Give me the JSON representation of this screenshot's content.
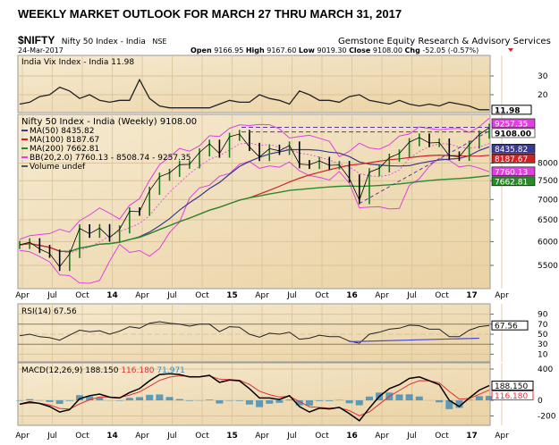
{
  "title": "WEEKLY MARKET OUTLOOK FOR MARCH 27 THRU MARCH 31, 2017",
  "header": {
    "symbol": "$NIFTY",
    "name": "Nifty 50 Index - India",
    "exchange": "NSE",
    "provider": "Gemstone Equity Research & Advisory Services",
    "date": "24-Mar-2017",
    "open_label": "Open",
    "open": "9166.95",
    "high_label": "High",
    "high": "9167.60",
    "low_label": "Low",
    "low": "9019.30",
    "close_label": "Close",
    "close": "9108.00",
    "chg_label": "Chg",
    "chg": "-52.05 (-0.57%)",
    "chg_icon": "triangle-down-icon"
  },
  "colors": {
    "panel": "#f1dfbc",
    "price": "#000000",
    "ma50": "#3a3a8c",
    "ma100": "#cc2222",
    "ma200": "#2a8a2a",
    "bb": "#e040e0",
    "macd_signal": "#e03030",
    "hist": "#3a8ab8"
  },
  "chart_data": [
    {
      "type": "line",
      "panel": "vix",
      "legend": "India Vix Index - India 11.98",
      "yticks": [
        20,
        30
      ],
      "last_tag": "11.98",
      "values": [
        15,
        16,
        19,
        20,
        24,
        22,
        18,
        20,
        17,
        16,
        17,
        17,
        28,
        18,
        14,
        13,
        13,
        13,
        13,
        13,
        15,
        17,
        16,
        16,
        20,
        18,
        17,
        15,
        22,
        20,
        17,
        17,
        16,
        19,
        20,
        17,
        16,
        15,
        17,
        15,
        14,
        15,
        14,
        16,
        15,
        14,
        12,
        11.98
      ]
    },
    {
      "type": "line",
      "panel": "price",
      "scale": "log",
      "legend_title": "Nifty 50 Index - India (Weekly) 9108.00",
      "legend": [
        {
          "name": "MA(50) 8435.82",
          "color": "#3a3a8c"
        },
        {
          "name": "MA(100) 8187.67",
          "color": "#cc2222"
        },
        {
          "name": "MA(200) 7662.81",
          "color": "#2a8a2a"
        },
        {
          "name": "BB(20,2.0) 7760.13 - 8508.74 - 9257.35",
          "color": "#e040e0"
        },
        {
          "name": "Volume undef",
          "color": "#555555"
        }
      ],
      "yticks": [
        5500,
        6000,
        6500,
        7000,
        7500,
        8000
      ],
      "tags": [
        {
          "label": "9257.35",
          "value": 9257.35,
          "color": "#e040e0"
        },
        {
          "label": "9108.00",
          "value": 9108,
          "color": "#000000"
        },
        {
          "label": "8435.82",
          "value": 8435.82,
          "color": "#3a3a8c"
        },
        {
          "label": "8187.67",
          "value": 8187.67,
          "color": "#cc2222"
        },
        {
          "label": "7760.13",
          "value": 7760.13,
          "color": "#e040e0"
        },
        {
          "label": "7662.81",
          "value": 7662.81,
          "color": "#2a8a2a"
        }
      ],
      "resistance": [
        8970,
        9120
      ],
      "x_labels": [
        "Apr",
        "Jul",
        "Oct",
        "14",
        "Apr",
        "Jul",
        "Oct",
        "15",
        "Apr",
        "Jul",
        "Oct",
        "16",
        "Apr",
        "Jul",
        "Oct",
        "17",
        "Apr"
      ],
      "close": [
        5930,
        5986,
        5842,
        5742,
        5471,
        5735,
        6299,
        6176,
        6304,
        6090,
        6277,
        6704,
        6696,
        7230,
        7611,
        7721,
        7954,
        7965,
        8322,
        8588,
        8283,
        8809,
        8902,
        8491,
        8182,
        8434,
        8368,
        8533,
        7971,
        7949,
        8066,
        7935,
        7946,
        7563,
        6987,
        7738,
        7850,
        8160,
        8288,
        8639,
        8786,
        8611,
        8626,
        8224,
        8186,
        8561,
        8880,
        9108
      ]
    },
    {
      "type": "line",
      "panel": "rsi",
      "legend": "RSI(14) 67.56",
      "yticks": [
        90,
        70,
        50,
        30,
        10
      ],
      "last_tag": "67.56",
      "values": [
        47,
        50,
        45,
        43,
        38,
        48,
        58,
        55,
        57,
        50,
        56,
        65,
        62,
        72,
        75,
        72,
        70,
        66,
        70,
        70,
        55,
        65,
        64,
        50,
        44,
        52,
        50,
        54,
        40,
        42,
        48,
        45,
        45,
        36,
        32,
        50,
        54,
        60,
        62,
        68,
        67,
        60,
        60,
        45,
        45,
        58,
        65,
        67.56
      ]
    },
    {
      "type": "line",
      "panel": "macd",
      "legend": [
        "MACD(12,26,9) 188.150",
        "116.180",
        "71.971"
      ],
      "yticks": [
        400,
        0,
        -200
      ],
      "tags": [
        "188.150",
        "116.180"
      ],
      "macd": [
        -50,
        -20,
        -40,
        -80,
        -150,
        -120,
        20,
        60,
        80,
        40,
        30,
        100,
        150,
        250,
        330,
        340,
        330,
        300,
        300,
        320,
        230,
        260,
        250,
        150,
        30,
        30,
        10,
        60,
        -80,
        -150,
        -100,
        -110,
        -90,
        -170,
        -260,
        -100,
        50,
        150,
        200,
        280,
        300,
        250,
        200,
        0,
        -80,
        30,
        130,
        188.15
      ],
      "x_labels": [
        "Apr",
        "Jul",
        "Oct",
        "14",
        "Apr",
        "Jul",
        "Oct",
        "15",
        "Apr",
        "Jul",
        "Oct",
        "16",
        "Apr",
        "Jul",
        "Oct",
        "17",
        "Apr"
      ]
    }
  ]
}
